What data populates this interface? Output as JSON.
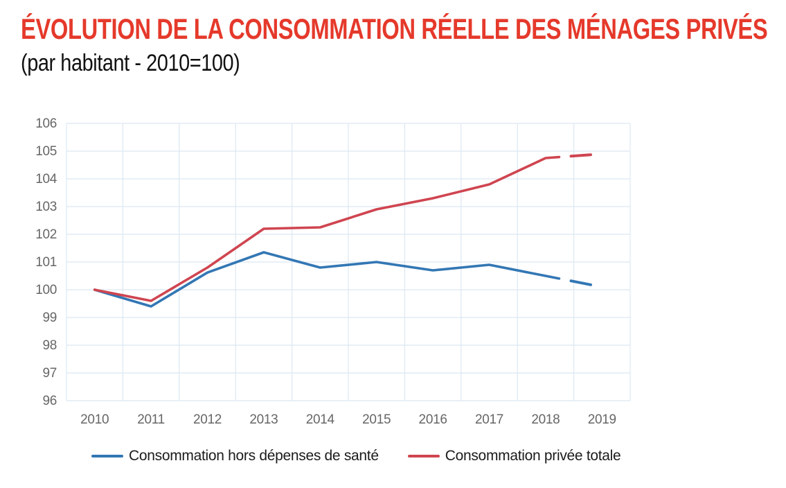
{
  "header": {
    "title": "ÉVOLUTION DE LA CONSOMMATION RÉELLE DES MÉNAGES PRIVÉS",
    "subtitle": "(par habitant - 2010=100)"
  },
  "colors": {
    "title_red": "#e5392b",
    "blue_line": "#3377b4",
    "red_line": "#cf4550",
    "grid": "#dce8f2",
    "axis_text": "#666666",
    "legend_text": "#1b1b1b"
  },
  "chart_data": {
    "type": "line",
    "title": "Évolution de la consommation réelle des ménages privés (par habitant - 2010=100)",
    "categories": [
      "2010",
      "2011",
      "2012",
      "2013",
      "2014",
      "2015",
      "2016",
      "2017",
      "2018",
      "2019"
    ],
    "series": [
      {
        "name": "Consommation hors dépenses de santé",
        "color_key": "blue_line",
        "values": [
          100,
          99.4,
          100.62,
          101.35,
          100.8,
          101.0,
          100.7,
          100.9,
          100.5,
          100.1
        ],
        "last_segment_dashed": true
      },
      {
        "name": "Consommation privée totale",
        "color_key": "red_line",
        "values": [
          100,
          99.6,
          100.8,
          102.2,
          102.25,
          102.9,
          103.3,
          103.8,
          104.75,
          104.9
        ],
        "last_segment_dashed": true
      }
    ],
    "xlabel": "",
    "ylabel": "",
    "ylim": [
      96,
      106
    ],
    "y_ticks": [
      96,
      97,
      98,
      99,
      100,
      101,
      102,
      103,
      104,
      105,
      106
    ],
    "grid": "on",
    "legend_position": "bottom"
  },
  "legend": {
    "items": [
      {
        "label": "Consommation hors dépenses de santé",
        "color_key": "blue_line"
      },
      {
        "label": "Consommation privée totale",
        "color_key": "red_line"
      }
    ]
  }
}
